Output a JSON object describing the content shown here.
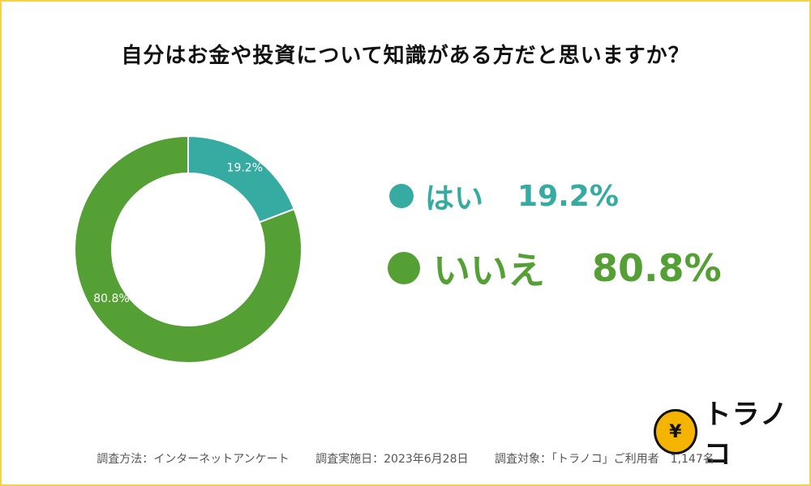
{
  "title": "自分はお金や投資について知識がある方だと思いますか？",
  "chart_data": {
    "type": "pie",
    "donut": true,
    "categories": [
      "はい",
      "いいえ"
    ],
    "values": [
      19.2,
      80.8
    ],
    "labels": [
      "19.2%",
      "80.8%"
    ],
    "colors": [
      "#35aba2",
      "#54a035"
    ]
  },
  "legend": [
    {
      "label": "はい",
      "value": "19.2%",
      "color": "#35aba2"
    },
    {
      "label": "いいえ",
      "value": "80.8%",
      "color": "#54a035"
    }
  ],
  "logo": {
    "text": "トラノコ",
    "icon": "tiger-yen-icon"
  },
  "footer": {
    "method": "調査方法：インターネットアンケート",
    "date": "調査実施日：2023年6月28日",
    "target": "調査対象：「トラノコ」ご利用者　1,147名"
  }
}
